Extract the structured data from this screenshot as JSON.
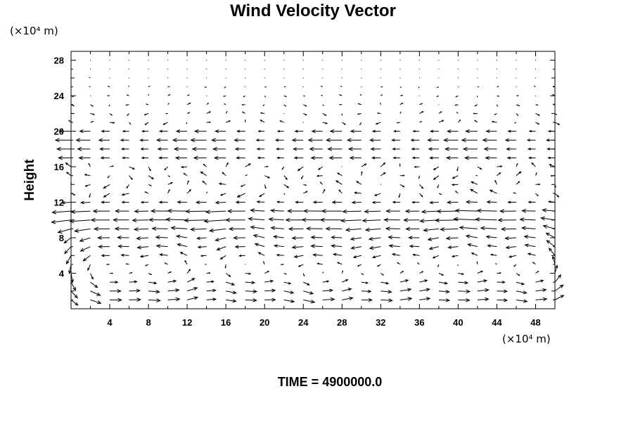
{
  "chart_data": {
    "type": "vector-field",
    "title": "Wind Velocity Vector",
    "ylabel": "Height",
    "xlabel": "",
    "x_unit": "(×10⁴ m)",
    "y_unit": "(×10⁴ m)",
    "footer": "TIME = 4900000.0",
    "xlim": [
      0,
      50
    ],
    "ylim": [
      0,
      29
    ],
    "x_ticks": [
      4,
      8,
      12,
      16,
      20,
      24,
      28,
      32,
      36,
      40,
      44,
      48
    ],
    "y_ticks": [
      4,
      8,
      12,
      16,
      20,
      24,
      28
    ],
    "grid": false,
    "grid_x": {
      "start": 0,
      "step": 2,
      "count": 26
    },
    "grid_y": {
      "start": 1,
      "step": 1,
      "count": 28
    },
    "cells": [
      {
        "x_center": 3,
        "y_center": 4.5,
        "rotation": "counterclockwise"
      },
      {
        "x_center": 10,
        "y_center": 4.5,
        "rotation": "counterclockwise"
      },
      {
        "x_center": 18,
        "y_center": 5,
        "rotation": "counterclockwise"
      },
      {
        "x_center": 25.5,
        "y_center": 4,
        "rotation": "counterclockwise"
      },
      {
        "x_center": 33,
        "y_center": 4.5,
        "rotation": "counterclockwise"
      },
      {
        "x_center": 40.5,
        "y_center": 5,
        "rotation": "counterclockwise"
      },
      {
        "x_center": 48,
        "y_center": 4.5,
        "rotation": "counterclockwise"
      }
    ],
    "bands": [
      {
        "y": 9,
        "u": -0.45
      },
      {
        "y": 10,
        "u": -0.95
      },
      {
        "y": 11,
        "u": -1.0
      },
      {
        "y": 12,
        "u": -0.45
      },
      {
        "y": 17,
        "u": -0.8
      },
      {
        "y": 18,
        "u": -0.9
      },
      {
        "y": 19,
        "u": -1.0
      },
      {
        "y": 20,
        "u": -0.75
      }
    ],
    "colors": {
      "axes": "#000000",
      "vectors": "#000000",
      "background": "#ffffff"
    }
  }
}
